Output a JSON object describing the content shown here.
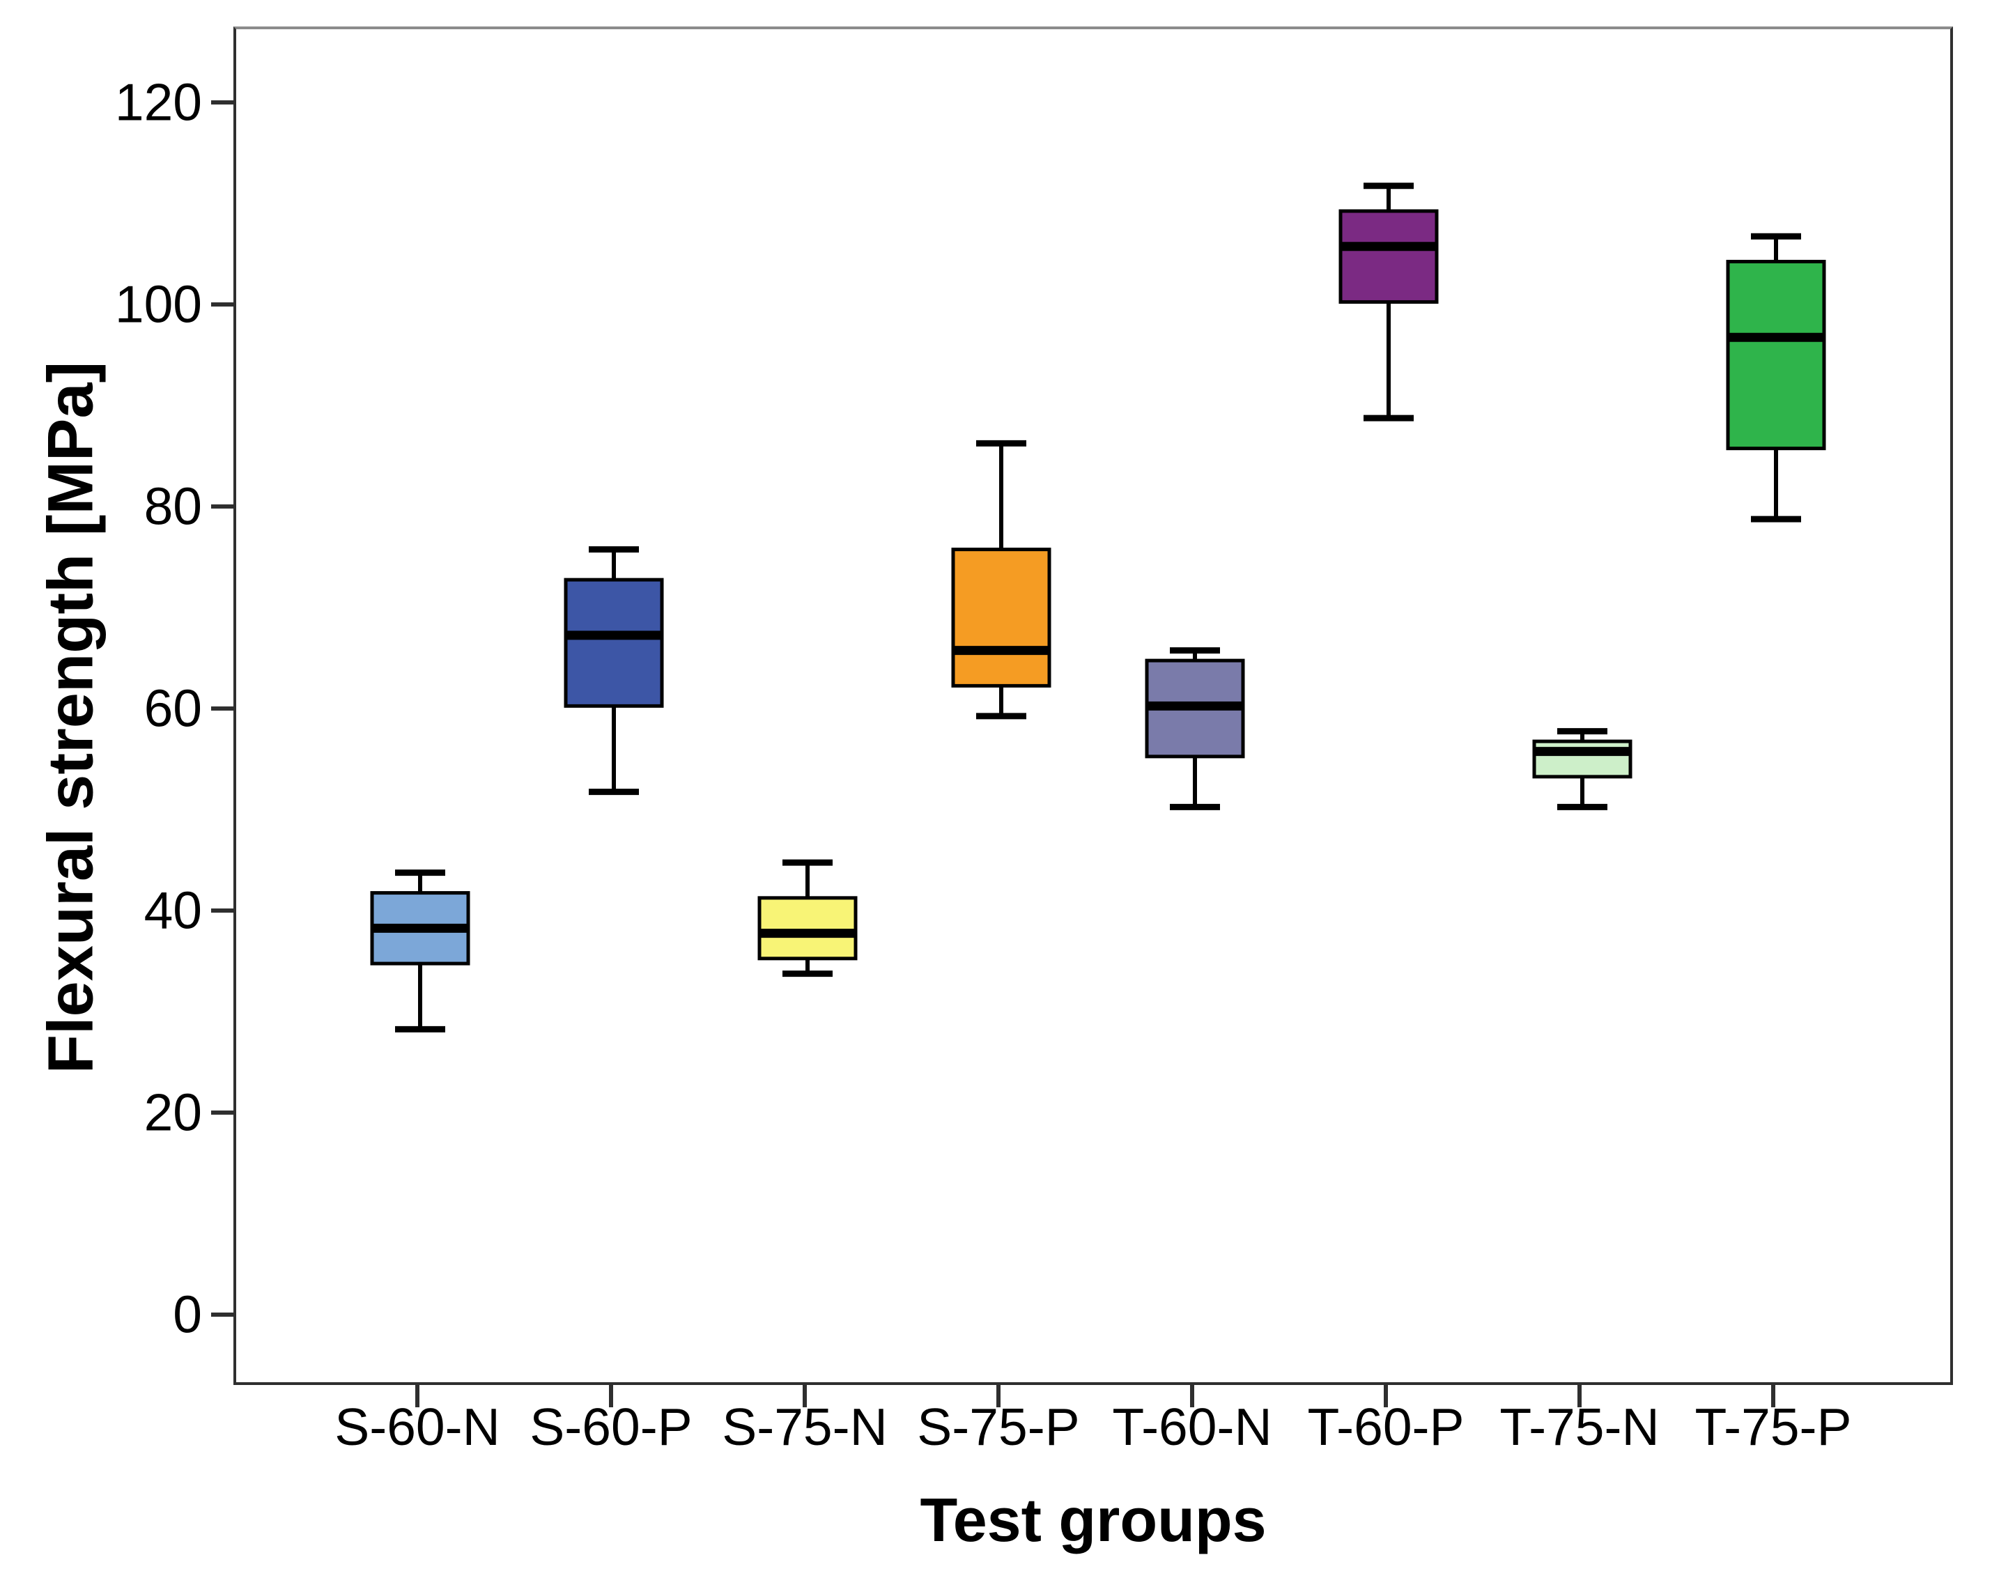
{
  "chart_data": {
    "type": "boxplot",
    "title": "",
    "xlabel": "Test groups",
    "ylabel": "Flexural strength [MPa]",
    "ylim": [
      -7,
      127.5
    ],
    "yticks": [
      0,
      20,
      40,
      60,
      80,
      100,
      120
    ],
    "ytick_labels": [
      "0",
      "20",
      "40",
      "60",
      "80",
      "100",
      "120"
    ],
    "categories": [
      "S-60-N",
      "S-60-P",
      "S-75-N",
      "S-75-P",
      "T-60-N",
      "T-60-P",
      "T-75-N",
      "T-75-P"
    ],
    "series": [
      {
        "group": "S-60-N",
        "min": 28.5,
        "q1": 35,
        "median": 38.5,
        "q3": 42,
        "max": 44,
        "color": "#7CA7D8"
      },
      {
        "group": "S-60-P",
        "min": 52,
        "q1": 60.5,
        "median": 67.5,
        "q3": 73,
        "max": 76,
        "color": "#3D56A6"
      },
      {
        "group": "S-75-N",
        "min": 34,
        "q1": 35.5,
        "median": 38,
        "q3": 41.5,
        "max": 45,
        "color": "#F8F476"
      },
      {
        "group": "S-75-P",
        "min": 59.5,
        "q1": 62.5,
        "median": 66,
        "q3": 76,
        "max": 86.5,
        "color": "#F59C23"
      },
      {
        "group": "T-60-N",
        "min": 50.5,
        "q1": 55.5,
        "median": 60.5,
        "q3": 65,
        "max": 66,
        "color": "#7A7BAA"
      },
      {
        "group": "T-60-P",
        "min": 89,
        "q1": 100.5,
        "median": 106,
        "q3": 109.5,
        "max": 112,
        "color": "#7B2A83"
      },
      {
        "group": "T-75-N",
        "min": 50.5,
        "q1": 53.5,
        "median": 56,
        "q3": 57,
        "max": 58,
        "color": "#CDEFC9"
      },
      {
        "group": "T-75-P",
        "min": 79,
        "q1": 86,
        "median": 97,
        "q3": 104.5,
        "max": 107,
        "color": "#2FB44B"
      }
    ],
    "grid": false,
    "legend": false,
    "axis_color": "#2f2f2f",
    "frame_top_color": "#8c8c8c",
    "box_border_color": "#000000",
    "background_color": "#ffffff"
  }
}
